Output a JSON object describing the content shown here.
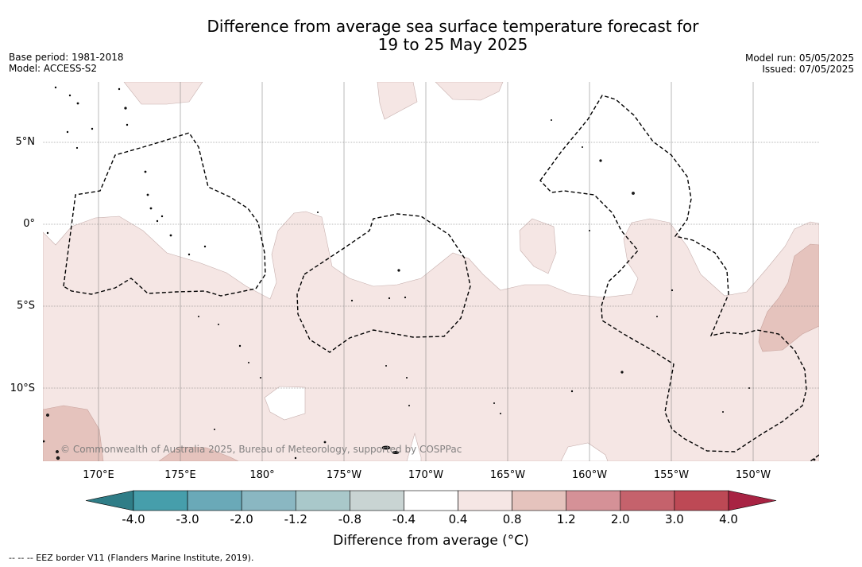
{
  "title": {
    "line1": "Difference from average sea surface temperature forecast for",
    "line2": "19 to 25 May 2025"
  },
  "meta_left": {
    "base_period": "Base period: 1981-2018",
    "model": "Model: ACCESS-S2"
  },
  "meta_right": {
    "model_run": "Model run: 05/05/2025",
    "issued": "Issued: 07/05/2025"
  },
  "lat_labels": [
    "5°N",
    "0°",
    "5°S",
    "10°S"
  ],
  "lon_labels": [
    "170°E",
    "175°E",
    "180°",
    "175°W",
    "170°W",
    "165°W",
    "160°W",
    "155°W",
    "150°W"
  ],
  "copyright": "© Commonwealth of Australia 2025, Bureau of Meteorology, supported by COSPPac",
  "colorbar": {
    "ticks": [
      "-4.0",
      "-3.0",
      "-2.0",
      "-1.2",
      "-0.8",
      "-0.4",
      "0.4",
      "0.8",
      "1.2",
      "2.0",
      "3.0",
      "4.0"
    ],
    "colors": [
      "#2f7d87",
      "#469eab",
      "#6aa9b8",
      "#8ab7c2",
      "#a9c8ca",
      "#c9d4d3",
      "#ffffff",
      "#f5e6e4",
      "#e5c3bd",
      "#d59197",
      "#c5626c",
      "#bd4955",
      "#a82343"
    ],
    "label": "Difference from average (°C)"
  },
  "footnote": "--  --  -- EEZ border V11 (Flanders Marine Institute, 2019)."
}
